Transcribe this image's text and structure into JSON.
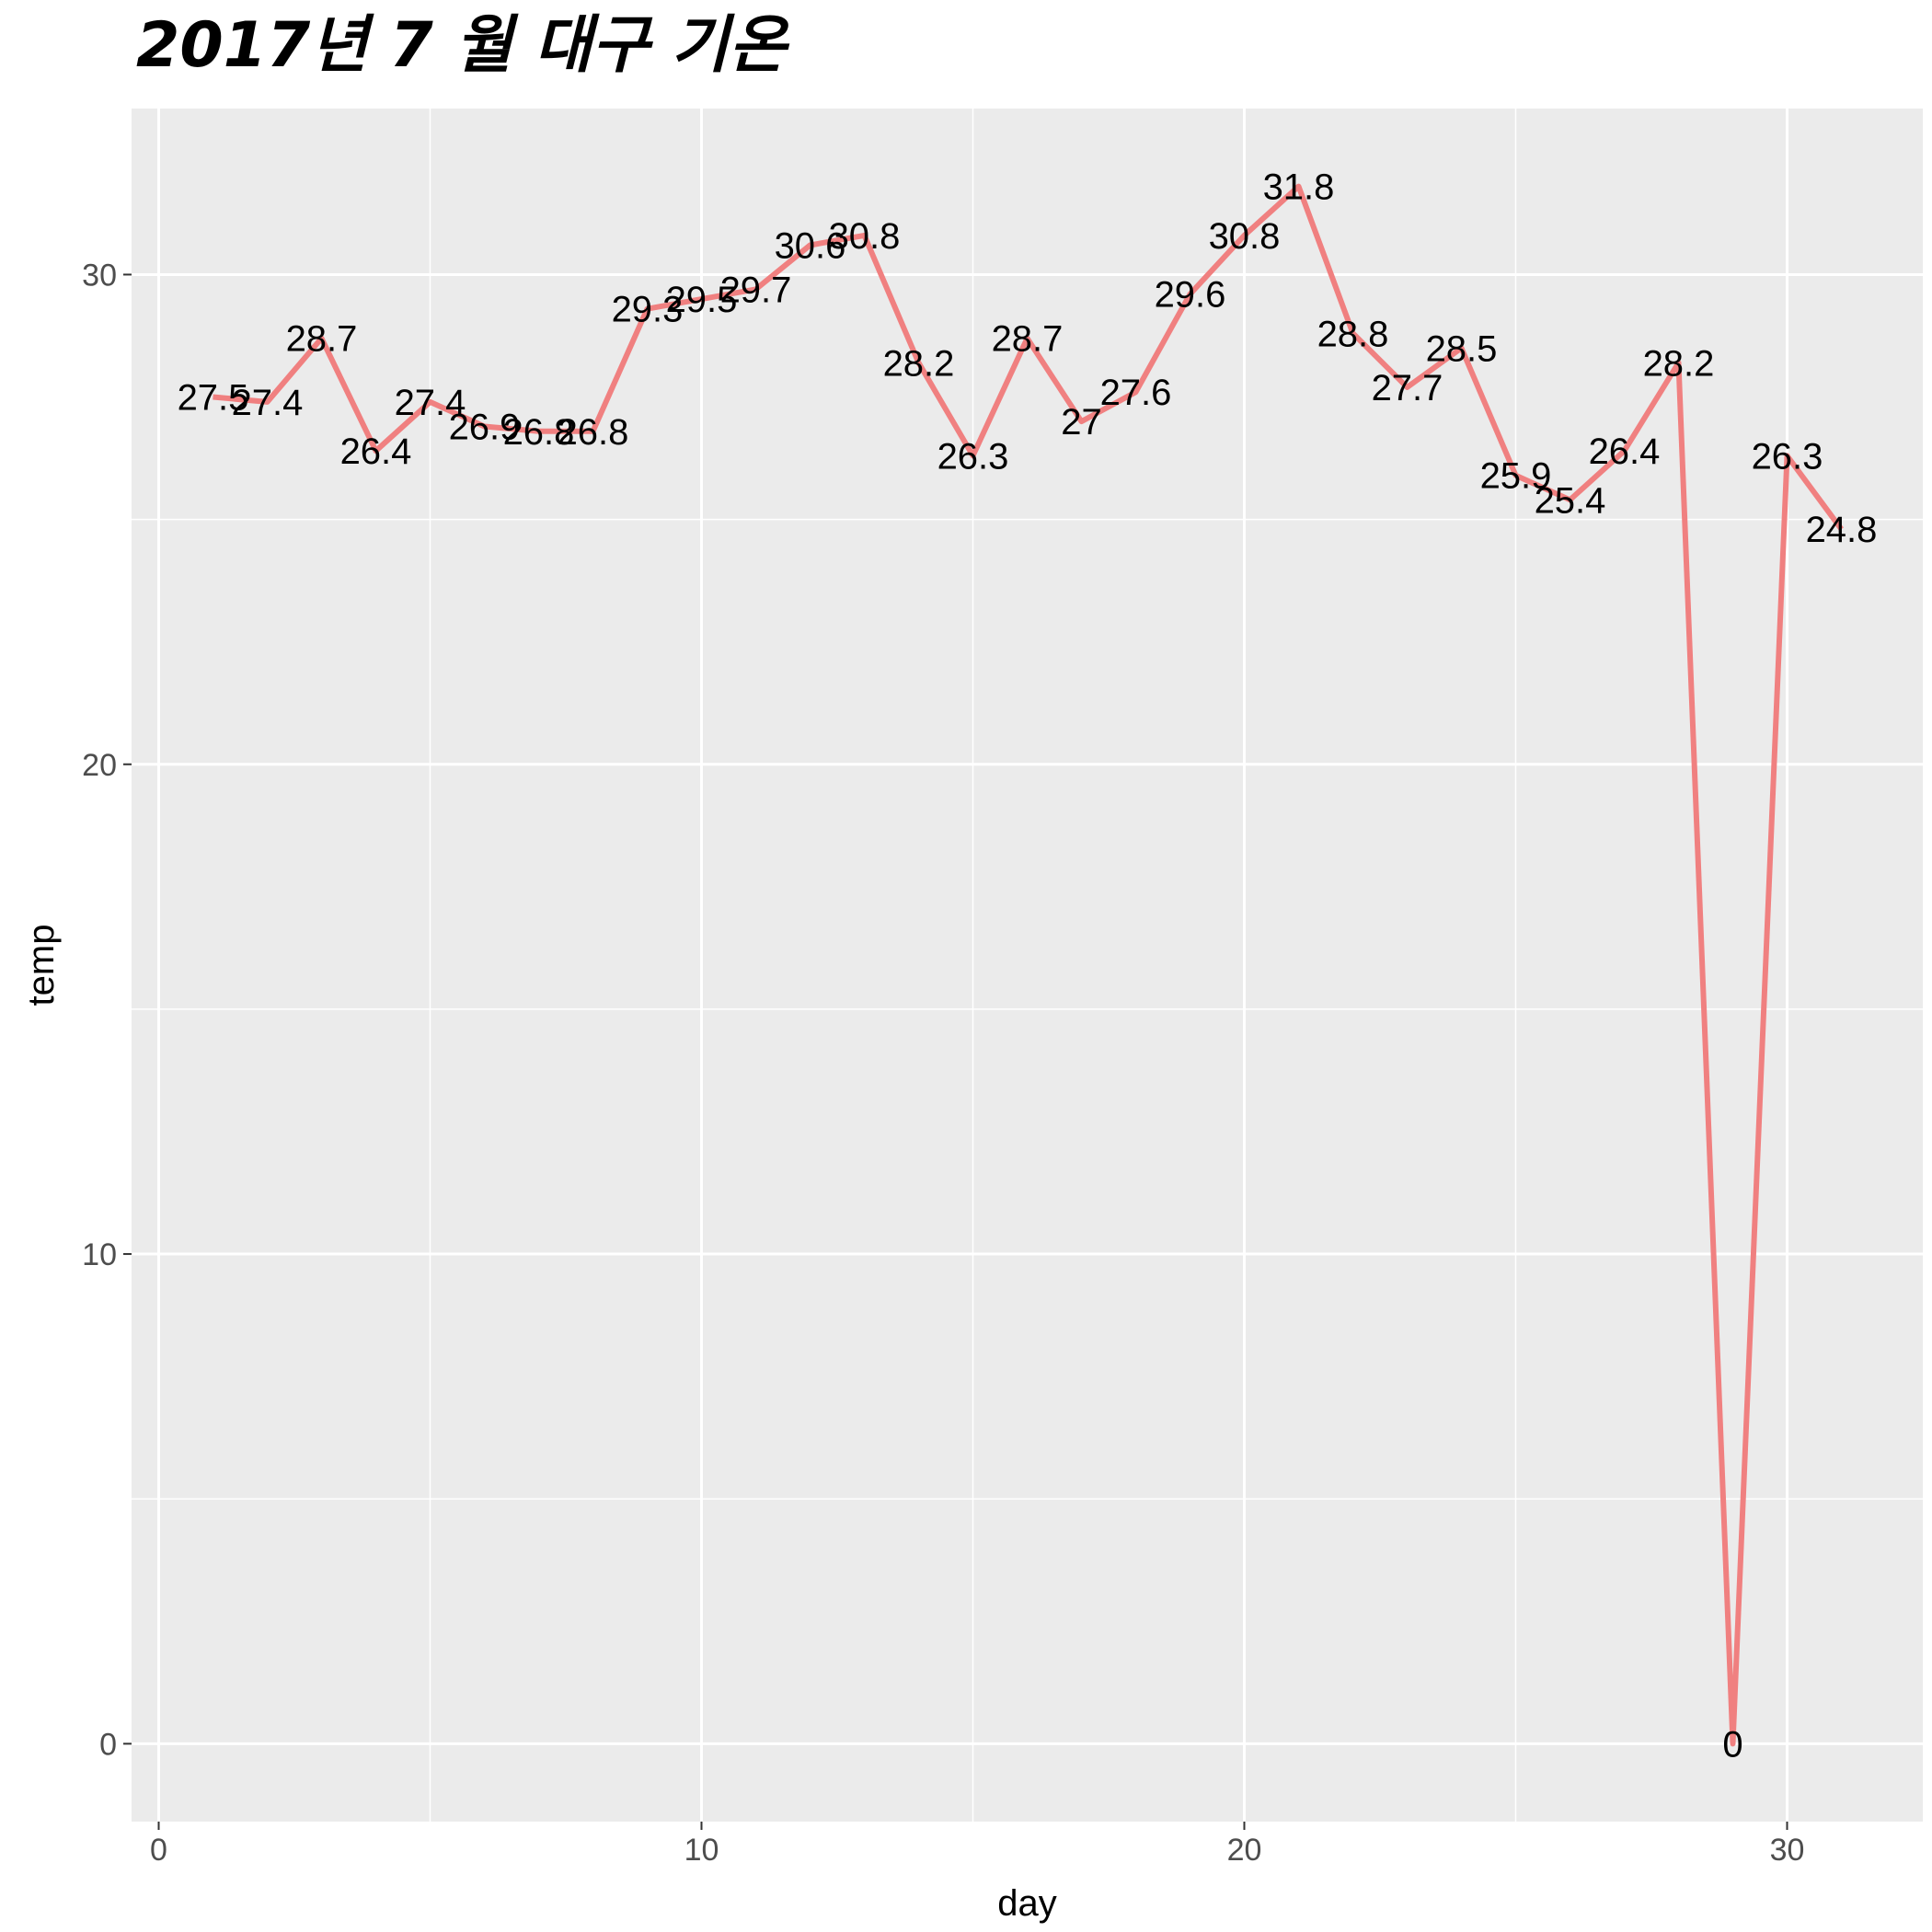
{
  "chart_data": {
    "type": "line",
    "title": "2017년 7 월 대구 기온",
    "xlabel": "day",
    "ylabel": "temp",
    "x": [
      1,
      2,
      3,
      4,
      5,
      6,
      7,
      8,
      9,
      10,
      11,
      12,
      13,
      14,
      15,
      16,
      17,
      18,
      19,
      20,
      21,
      22,
      23,
      24,
      25,
      26,
      27,
      28,
      29,
      30,
      31
    ],
    "series": [
      {
        "values": [
          27.5,
          27.4,
          28.7,
          26.4,
          27.4,
          26.9,
          26.8,
          26.8,
          29.3,
          29.5,
          29.7,
          30.6,
          30.8,
          28.2,
          26.3,
          28.7,
          27,
          27.6,
          29.6,
          30.8,
          31.8,
          28.8,
          27.7,
          28.5,
          25.9,
          25.4,
          26.4,
          28.2,
          0,
          26.3,
          24.8
        ],
        "labels": [
          "27.5",
          "27.4",
          "28.7",
          "26.4",
          "27.4",
          "26.9",
          "26.8",
          "26.8",
          "29.3",
          "29.5",
          "29.7",
          "30.6",
          "30.8",
          "28.2",
          "26.3",
          "28.7",
          "27",
          "27.6",
          "29.6",
          "30.8",
          "31.8",
          "28.8",
          "27.7",
          "28.5",
          "25.9",
          "25.4",
          "26.4",
          "28.2",
          "0",
          "26.3",
          "24.8"
        ]
      }
    ],
    "xlim": [
      -0.5,
      32.5
    ],
    "ylim": [
      -1.59,
      33.39
    ],
    "x_ticks": [
      0,
      10,
      20,
      30
    ],
    "x_tick_labels": [
      "0",
      "10",
      "20",
      "30"
    ],
    "y_ticks": [
      0,
      10,
      20,
      30
    ],
    "y_tick_labels": [
      "0",
      "10",
      "20",
      "30"
    ],
    "grid": true,
    "colors": {
      "line": "#F08080",
      "panel": "#EBEBEB",
      "grid": "#FFFFFF"
    }
  }
}
